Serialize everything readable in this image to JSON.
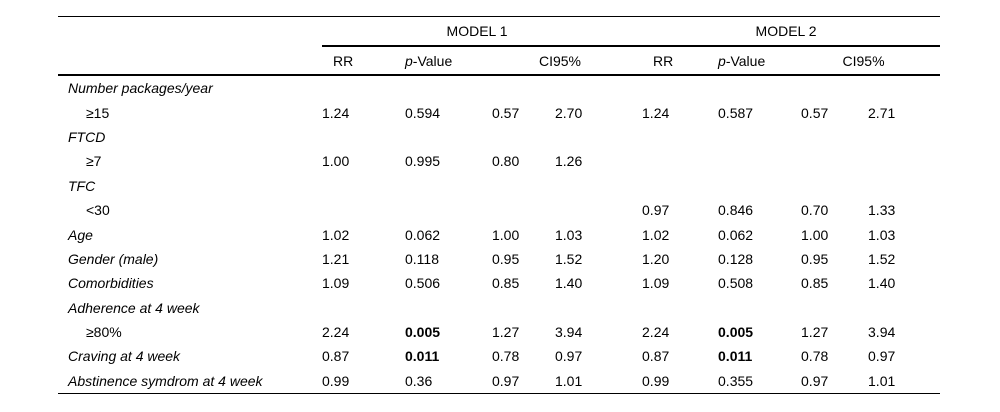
{
  "page": {
    "background_color": "#ffffff",
    "text_color": "#000000"
  },
  "table": {
    "model1_header": "MODEL 1",
    "model2_header": "MODEL 2",
    "col_headers": {
      "rr": "RR",
      "p_italic": "p",
      "p_rest": "-Value",
      "ci": "CI95%"
    },
    "rows": [
      {
        "label": "Number packages/year",
        "indent": false,
        "m1": [
          "",
          "",
          "",
          ""
        ],
        "m2": [
          "",
          "",
          "",
          ""
        ],
        "bold_p": false
      },
      {
        "label": "≥15",
        "indent": true,
        "m1": [
          "1.24",
          "0.594",
          "0.57",
          "2.70"
        ],
        "m2": [
          "1.24",
          "0.587",
          "0.57",
          "2.71"
        ],
        "bold_p": false
      },
      {
        "label": "FTCD",
        "indent": false,
        "m1": [
          "",
          "",
          "",
          ""
        ],
        "m2": [
          "",
          "",
          "",
          ""
        ],
        "bold_p": false
      },
      {
        "label": "≥7",
        "indent": true,
        "m1": [
          "1.00",
          "0.995",
          "0.80",
          "1.26"
        ],
        "m2": [
          "",
          "",
          "",
          ""
        ],
        "bold_p": false
      },
      {
        "label": "TFC",
        "indent": false,
        "m1": [
          "",
          "",
          "",
          ""
        ],
        "m2": [
          "",
          "",
          "",
          ""
        ],
        "bold_p": false
      },
      {
        "label": "<30",
        "indent": true,
        "m1": [
          "",
          "",
          "",
          ""
        ],
        "m2": [
          "0.97",
          "0.846",
          "0.70",
          "1.33"
        ],
        "bold_p": false
      },
      {
        "label": "Age",
        "indent": false,
        "m1": [
          "1.02",
          "0.062",
          "1.00",
          "1.03"
        ],
        "m2": [
          "1.02",
          "0.062",
          "1.00",
          "1.03"
        ],
        "bold_p": false
      },
      {
        "label": "Gender (male)",
        "indent": false,
        "m1": [
          "1.21",
          "0.118",
          "0.95",
          "1.52"
        ],
        "m2": [
          "1.20",
          "0.128",
          "0.95",
          "1.52"
        ],
        "bold_p": false
      },
      {
        "label": "Comorbidities",
        "indent": false,
        "m1": [
          "1.09",
          "0.506",
          "0.85",
          "1.40"
        ],
        "m2": [
          "1.09",
          "0.508",
          "0.85",
          "1.40"
        ],
        "bold_p": false
      },
      {
        "label": "Adherence at 4 week",
        "indent": false,
        "m1": [
          "",
          "",
          "",
          ""
        ],
        "m2": [
          "",
          "",
          "",
          ""
        ],
        "bold_p": false
      },
      {
        "label": "≥80%",
        "indent": true,
        "m1": [
          "2.24",
          "0.005",
          "1.27",
          "3.94"
        ],
        "m2": [
          "2.24",
          "0.005",
          "1.27",
          "3.94"
        ],
        "bold_p": true
      },
      {
        "label": "Craving at 4 week",
        "indent": false,
        "m1": [
          "0.87",
          "0.011",
          "0.78",
          "0.97"
        ],
        "m2": [
          "0.87",
          "0.011",
          "0.78",
          "0.97"
        ],
        "bold_p": true
      },
      {
        "label": "Abstinence symdrom at 4 week",
        "indent": false,
        "m1": [
          "0.99",
          "0.36",
          "0.97",
          "1.01"
        ],
        "m2": [
          "0.99",
          "0.355",
          "0.97",
          "1.01"
        ],
        "bold_p": false
      }
    ]
  },
  "chart_data": {
    "type": "table",
    "title": "",
    "column_groups": [
      "MODEL 1",
      "MODEL 2"
    ],
    "columns_per_group": [
      "RR",
      "p-Value",
      "CI95% lower",
      "CI95% upper"
    ],
    "row_labels": [
      "Number packages/year",
      "≥15",
      "FTCD",
      "≥7",
      "TFC",
      "<30",
      "Age",
      "Gender (male)",
      "Comorbidities",
      "Adherence at 4 week",
      "≥80%",
      "Craving at 4 week",
      "Abstinence symdrom at 4 week"
    ],
    "model1_values": [
      null,
      [
        1.24,
        0.594,
        0.57,
        2.7
      ],
      null,
      [
        1.0,
        0.995,
        0.8,
        1.26
      ],
      null,
      null,
      [
        1.02,
        0.062,
        1.0,
        1.03
      ],
      [
        1.21,
        0.118,
        0.95,
        1.52
      ],
      [
        1.09,
        0.506,
        0.85,
        1.4
      ],
      null,
      [
        2.24,
        0.005,
        1.27,
        3.94
      ],
      [
        0.87,
        0.011,
        0.78,
        0.97
      ],
      [
        0.99,
        0.36,
        0.97,
        1.01
      ]
    ],
    "model2_values": [
      null,
      [
        1.24,
        0.587,
        0.57,
        2.71
      ],
      null,
      null,
      null,
      [
        0.97,
        0.846,
        0.7,
        1.33
      ],
      [
        1.02,
        0.062,
        1.0,
        1.03
      ],
      [
        1.2,
        0.128,
        0.95,
        1.52
      ],
      [
        1.09,
        0.508,
        0.85,
        1.4
      ],
      null,
      [
        2.24,
        0.005,
        1.27,
        3.94
      ],
      [
        0.87,
        0.011,
        0.78,
        0.97
      ],
      [
        0.99,
        0.355,
        0.97,
        1.01
      ]
    ]
  }
}
